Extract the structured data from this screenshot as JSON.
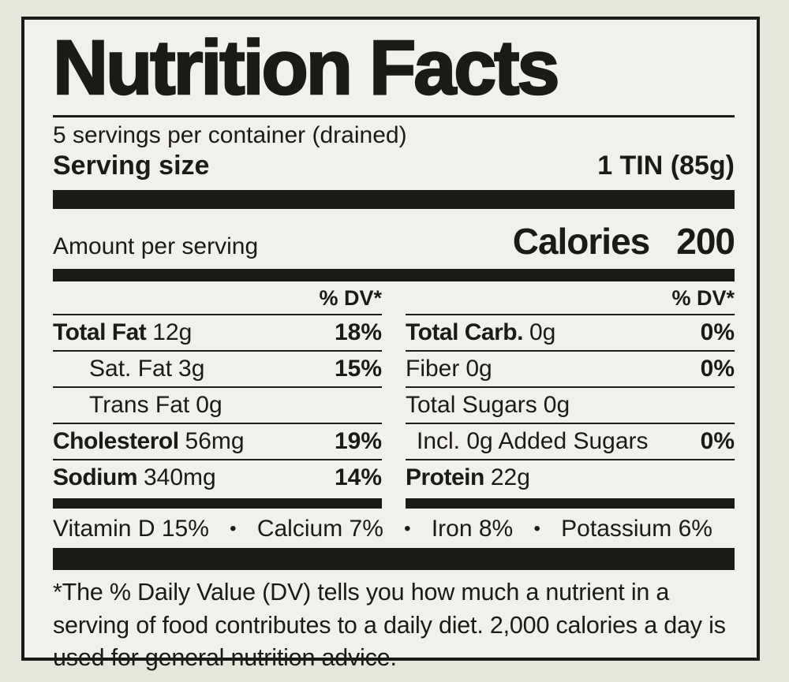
{
  "colors": {
    "ink": "#1c1a17",
    "label_background": "#f1f0ea",
    "page_background": "#e6e7db"
  },
  "label": {
    "title": "Nutrition Facts",
    "servings_per_container": "5 servings per container (drained)",
    "serving_size_label": "Serving size",
    "serving_size_value": "1 TIN (85g)",
    "amount_per_serving": "Amount per serving",
    "calories_label": "Calories",
    "calories_value": "200",
    "dv_header": "% DV*",
    "separator": "•",
    "columns": {
      "left": [
        {
          "name": "Total Fat",
          "amount": "12g",
          "dv": "18%"
        },
        {
          "name": "Sat. Fat",
          "amount": "3g",
          "dv": "15%"
        },
        {
          "name": "Trans Fat",
          "amount": "0g",
          "dv": ""
        },
        {
          "name": "Cholesterol",
          "amount": "56mg",
          "dv": "19%"
        },
        {
          "name": "Sodium",
          "amount": "340mg",
          "dv": "14%"
        }
      ],
      "right": [
        {
          "name": "Total Carb.",
          "amount": "0g",
          "dv": "0%"
        },
        {
          "name": "Fiber",
          "amount": "0g",
          "dv": "0%"
        },
        {
          "name": "Total Sugars",
          "amount": "0g",
          "dv": ""
        },
        {
          "name": "Incl. 0g Added Sugars",
          "amount": "",
          "dv": "0%"
        },
        {
          "name": "Protein",
          "amount": "22g",
          "dv": ""
        }
      ]
    },
    "micronutrients": [
      {
        "name": "Vitamin D",
        "dv": "15%"
      },
      {
        "name": "Calcium",
        "dv": "7%"
      },
      {
        "name": "Iron",
        "dv": "8%"
      },
      {
        "name": "Potassium",
        "dv": "6%"
      }
    ],
    "footnote": "*The % Daily Value (DV) tells you how much a nutrient in a serving of food contributes to a daily diet. 2,000 calories a day is used for general nutrition advice."
  }
}
